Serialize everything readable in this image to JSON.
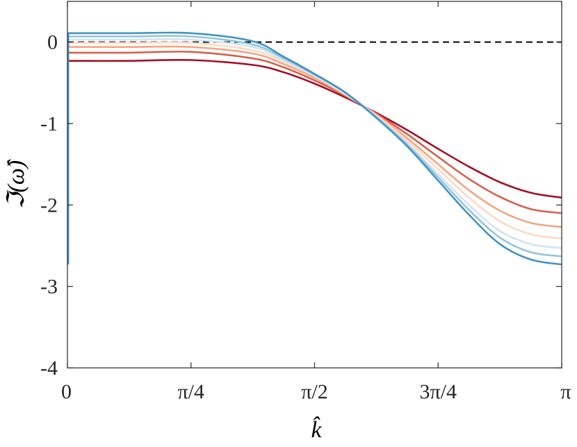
{
  "chart_data": {
    "type": "line",
    "xlabel": "k̂",
    "ylabel": "ℑ(ω̂)",
    "xlim": [
      0,
      3.14159265
    ],
    "ylim": [
      -4,
      0.5
    ],
    "grid": false,
    "x_ticks": [
      {
        "value": 0,
        "label": "0"
      },
      {
        "value": 0.78539816,
        "label": "π/4"
      },
      {
        "value": 1.57079633,
        "label": "π/2"
      },
      {
        "value": 2.35619449,
        "label": "3π/4"
      },
      {
        "value": 3.14159265,
        "label": "π"
      }
    ],
    "y_ticks": [
      {
        "value": 0,
        "label": "0"
      },
      {
        "value": -1,
        "label": "-1"
      },
      {
        "value": -2,
        "label": "-2"
      },
      {
        "value": -3,
        "label": "-3"
      },
      {
        "value": -4,
        "label": "-4"
      }
    ],
    "reference_line": {
      "y": 0,
      "style": "dashed",
      "color": "#000000"
    },
    "series": [
      {
        "color": "#a50f26",
        "x": [
          0,
          0.3927,
          0.7854,
          1.1781,
          1.3744,
          1.5708,
          1.7671,
          1.9635,
          2.1598,
          2.3562,
          2.5525,
          2.7489,
          2.9452,
          3.1416
        ],
        "y": [
          -0.23,
          -0.23,
          -0.22,
          -0.28,
          -0.37,
          -0.51,
          -0.68,
          -0.87,
          -1.08,
          -1.31,
          -1.53,
          -1.72,
          -1.85,
          -1.91
        ]
      },
      {
        "color": "#d6604d",
        "x": [
          0,
          0.3927,
          0.7854,
          1.1781,
          1.3744,
          1.5708,
          1.7671,
          1.9635,
          2.1598,
          2.3562,
          2.5525,
          2.7489,
          2.9452,
          3.1416
        ],
        "y": [
          -0.13,
          -0.13,
          -0.12,
          -0.2,
          -0.31,
          -0.47,
          -0.66,
          -0.88,
          -1.13,
          -1.41,
          -1.68,
          -1.9,
          -2.05,
          -2.1
        ]
      },
      {
        "color": "#f4a582",
        "x": [
          0,
          0.3927,
          0.7854,
          1.1781,
          1.3744,
          1.5708,
          1.7671,
          1.9635,
          2.1598,
          2.3562,
          2.5525,
          2.7489,
          2.9452,
          3.1416
        ],
        "y": [
          -0.06,
          -0.06,
          -0.06,
          -0.14,
          -0.27,
          -0.44,
          -0.65,
          -0.89,
          -1.18,
          -1.5,
          -1.82,
          -2.07,
          -2.22,
          -2.27
        ]
      },
      {
        "color": "#fdd9c6",
        "x": [
          0,
          0.3927,
          0.7854,
          1.1781,
          1.3744,
          1.5708,
          1.7671,
          1.9635,
          2.1598,
          2.3562,
          2.5525,
          2.7489,
          2.9452,
          3.1416
        ],
        "y": [
          -0.01,
          -0.01,
          -0.01,
          -0.1,
          -0.24,
          -0.42,
          -0.64,
          -0.9,
          -1.21,
          -1.56,
          -1.91,
          -2.2,
          -2.36,
          -2.41
        ]
      },
      {
        "color": "#d1e5f0",
        "x": [
          0,
          0.3927,
          0.7854,
          1.1781,
          1.3744,
          1.5708,
          1.7671,
          1.9635,
          2.1598,
          2.3562,
          2.5525,
          2.7489,
          2.9452,
          3.1416
        ],
        "y": [
          0.03,
          0.03,
          0.03,
          -0.06,
          -0.22,
          -0.41,
          -0.63,
          -0.91,
          -1.24,
          -1.62,
          -2.0,
          -2.32,
          -2.48,
          -2.53
        ]
      },
      {
        "color": "#92c5de",
        "x": [
          0,
          0.3927,
          0.7854,
          1.1781,
          1.3744,
          1.5708,
          1.7671,
          1.9635,
          2.1598,
          2.3562,
          2.5525,
          2.7489,
          2.9452,
          3.1416
        ],
        "y": [
          0.07,
          0.07,
          0.07,
          -0.03,
          -0.2,
          -0.4,
          -0.62,
          -0.92,
          -1.26,
          -1.66,
          -2.06,
          -2.4,
          -2.58,
          -2.63
        ]
      },
      {
        "color": "#4393c3",
        "x": [
          0,
          0.3927,
          0.7854,
          1.1781,
          1.3744,
          1.5708,
          1.7671,
          1.9635,
          2.1598,
          2.3562,
          2.5525,
          2.7489,
          2.9452,
          3.1416
        ],
        "y": [
          0.11,
          0.11,
          0.11,
          0.01,
          -0.18,
          -0.39,
          -0.62,
          -0.93,
          -1.28,
          -1.7,
          -2.12,
          -2.48,
          -2.67,
          -2.73
        ]
      }
    ],
    "near_zero_spike": {
      "x": 0.005,
      "y_from_series_start": -2.73,
      "color": "#4393c3"
    }
  }
}
